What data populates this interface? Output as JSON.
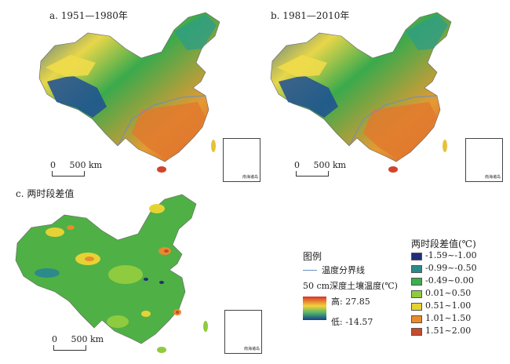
{
  "panels": {
    "a": {
      "title": "a. 1951—1980年"
    },
    "b": {
      "title": "b. 1981—2010年"
    },
    "c": {
      "title": "c. 两时段差值"
    }
  },
  "scalebar": {
    "zero": "0",
    "distance": "500 km"
  },
  "inset": {
    "caption": "南海诸岛"
  },
  "legend": {
    "title": "图例",
    "boundary_label": "温度分界线",
    "temp_title": "50 cm深度土壤温度(℃)",
    "high_label": "高: 27.85",
    "low_label": "低: -14.57",
    "diff_title": "两时段差值(℃)",
    "classes": [
      {
        "label": "-1.59~-1.00",
        "color": "#1f2f7a"
      },
      {
        "label": "-0.99~-0.50",
        "color": "#2d8a8a"
      },
      {
        "label": "-0.49~0.00",
        "color": "#3cae4a"
      },
      {
        "label": "0.01~0.50",
        "color": "#8fcb3f"
      },
      {
        "label": "0.51~1.00",
        "color": "#e6d234"
      },
      {
        "label": "1.01~1.50",
        "color": "#e88b2d"
      },
      {
        "label": "1.51~2.00",
        "color": "#c64a2e"
      }
    ],
    "gradient": {
      "high": "#d8332a",
      "mid": "#f3d23a",
      "midlow": "#4fb26a",
      "low": "#153e8f"
    },
    "boundary_color": "#6a8fc0"
  }
}
